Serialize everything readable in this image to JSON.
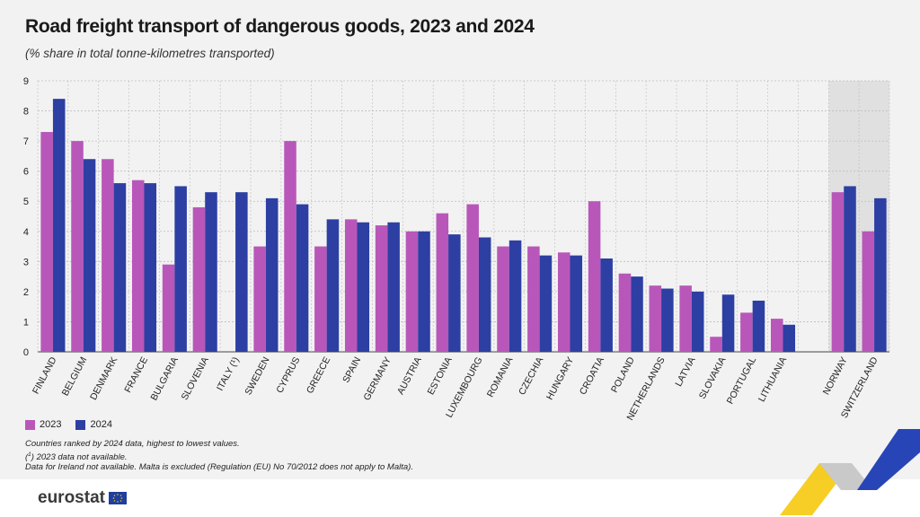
{
  "title": "Road freight transport of dangerous goods, 2023 and 2024",
  "subtitle": "(% share in total tonne-kilometres transported)",
  "brand": "eurostat",
  "colors": {
    "series_2023": "#b857b9",
    "series_2024": "#2d3fa3",
    "shade": "#e0e0e0",
    "grid": "#bdbdbd",
    "ribbon_yellow": "#f5c600",
    "ribbon_blue": "#2845b8"
  },
  "notes": [
    "Countries ranked by 2024 data, highest to lowest values.",
    "2023 data not available.",
    "Data for Ireland not available. Malta is excluded (Regulation (EU) No 70/2012 does not apply to Malta)."
  ],
  "note_marker": "1",
  "chart_data": {
    "type": "bar",
    "title": "Road freight transport of dangerous goods, 2023 and 2024",
    "ylabel": "% share in total tonne-kilometres transported",
    "ylim": [
      0,
      9
    ],
    "yticks": [
      0,
      1,
      2,
      3,
      4,
      5,
      6,
      7,
      8,
      9
    ],
    "grid": true,
    "legend_position": "bottom-left",
    "categories": [
      "FINLAND",
      "BELGIUM",
      "DENMARK",
      "FRANCE",
      "BULGARIA",
      "SLOVENIA",
      "ITALY (¹)",
      "SWEDEN",
      "CYPRUS",
      "GREECE",
      "SPAIN",
      "GERMANY",
      "AUSTRIA",
      "ESTONIA",
      "LUXEMBOURG",
      "ROMANIA",
      "CZECHIA",
      "HUNGARY",
      "CROATIA",
      "POLAND",
      "NETHERLANDS",
      "LATVIA",
      "SLOVAKIA",
      "PORTUGAL",
      "LITHUANIA",
      "NORWAY",
      "SWITZERLAND"
    ],
    "shaded_categories": [
      "NORWAY",
      "SWITZERLAND"
    ],
    "series": [
      {
        "name": "2023",
        "values": [
          7.3,
          7.0,
          6.4,
          5.7,
          2.9,
          4.8,
          null,
          3.5,
          7.0,
          3.5,
          4.4,
          4.2,
          4.0,
          4.6,
          4.9,
          3.5,
          3.5,
          3.3,
          5.0,
          2.6,
          2.2,
          2.2,
          0.5,
          1.3,
          1.1,
          5.3,
          4.0
        ]
      },
      {
        "name": "2024",
        "values": [
          8.4,
          6.4,
          5.6,
          5.6,
          5.5,
          5.3,
          5.3,
          5.1,
          4.9,
          4.4,
          4.3,
          4.3,
          4.0,
          3.9,
          3.8,
          3.7,
          3.2,
          3.2,
          3.1,
          2.5,
          2.1,
          2.0,
          1.9,
          1.7,
          0.9,
          5.5,
          5.1
        ]
      }
    ]
  }
}
